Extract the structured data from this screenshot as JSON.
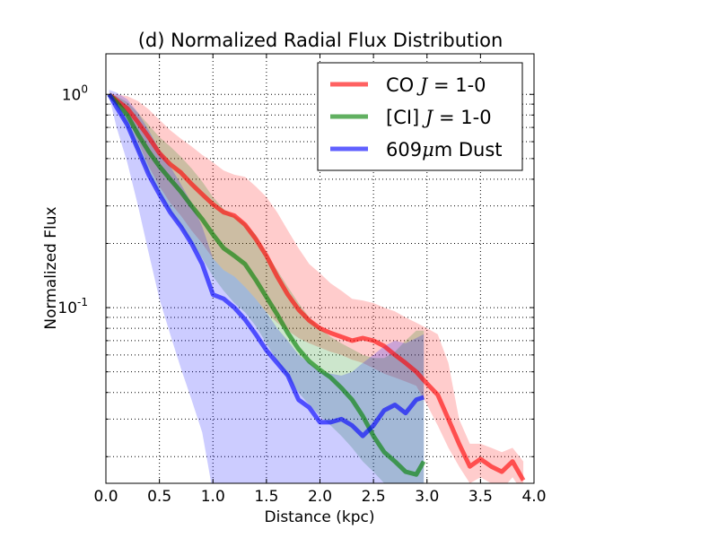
{
  "chart_data": {
    "type": "line",
    "title": "(d) Normalized Radial Flux Distribution",
    "xlabel": "Distance (kpc)",
    "ylabel": "Normalized Flux",
    "xlim": [
      0.0,
      4.0
    ],
    "ylim": [
      0.015,
      1.55
    ],
    "yscale": "log",
    "grid": true,
    "legend_position": "top-right",
    "x_ticks": [
      0.0,
      0.5,
      1.0,
      1.5,
      2.0,
      2.5,
      3.0,
      3.5,
      4.0
    ],
    "x_tick_labels": [
      "0.0",
      "0.5",
      "1.0",
      "1.5",
      "2.0",
      "2.5",
      "3.0",
      "3.5",
      "4.0"
    ],
    "y_ticks": [
      {
        "value": 1.0,
        "base": "10",
        "exp": "0"
      },
      {
        "value": 0.1,
        "base": "10",
        "exp": "-1"
      }
    ],
    "series": [
      {
        "name": "CO J = 1-0",
        "legend_main": "CO ",
        "legend_italic": "J",
        "legend_tail": " = 1-0",
        "color": "#ff0000",
        "x": [
          0.03,
          0.1,
          0.2,
          0.3,
          0.4,
          0.5,
          0.6,
          0.7,
          0.8,
          0.9,
          1.0,
          1.1,
          1.2,
          1.3,
          1.4,
          1.5,
          1.6,
          1.7,
          1.8,
          1.9,
          2.0,
          2.1,
          2.2,
          2.3,
          2.4,
          2.5,
          2.6,
          2.7,
          2.8,
          2.9,
          3.0,
          3.1,
          3.2,
          3.3,
          3.4,
          3.5,
          3.6,
          3.7,
          3.8,
          3.9
        ],
        "y": [
          1.0,
          0.94,
          0.86,
          0.74,
          0.63,
          0.53,
          0.47,
          0.43,
          0.38,
          0.34,
          0.305,
          0.28,
          0.27,
          0.245,
          0.21,
          0.175,
          0.14,
          0.115,
          0.098,
          0.087,
          0.08,
          0.076,
          0.073,
          0.07,
          0.072,
          0.07,
          0.066,
          0.06,
          0.055,
          0.05,
          0.044,
          0.039,
          0.03,
          0.023,
          0.018,
          0.0195,
          0.018,
          0.017,
          0.019,
          0.0155
        ],
        "y_upper": [
          1.0,
          1.0,
          0.98,
          0.93,
          0.85,
          0.76,
          0.68,
          0.62,
          0.57,
          0.52,
          0.48,
          0.44,
          0.42,
          0.41,
          0.37,
          0.33,
          0.28,
          0.23,
          0.19,
          0.16,
          0.145,
          0.13,
          0.12,
          0.11,
          0.108,
          0.105,
          0.1,
          0.096,
          0.09,
          0.085,
          0.08,
          0.075,
          0.055,
          0.03,
          0.023,
          0.023,
          0.022,
          0.021,
          0.022,
          0.019
        ],
        "y_lower": [
          1.0,
          0.9,
          0.78,
          0.6,
          0.46,
          0.37,
          0.31,
          0.27,
          0.23,
          0.2,
          0.17,
          0.15,
          0.14,
          0.125,
          0.11,
          0.095,
          0.085,
          0.078,
          0.072,
          0.068,
          0.065,
          0.062,
          0.06,
          0.057,
          0.055,
          0.052,
          0.049,
          0.047,
          0.045,
          0.043,
          0.035,
          0.028,
          0.022,
          0.018,
          0.015,
          0.016,
          0.015,
          0.014,
          0.016,
          0.0135
        ]
      },
      {
        "name": "[CI] J = 1-0",
        "legend_main": "[CI] ",
        "legend_italic": "J",
        "legend_tail": " = 1-0",
        "color": "#008000",
        "x": [
          0.03,
          0.1,
          0.2,
          0.3,
          0.4,
          0.5,
          0.6,
          0.7,
          0.8,
          0.9,
          1.0,
          1.1,
          1.2,
          1.3,
          1.4,
          1.5,
          1.6,
          1.7,
          1.8,
          1.9,
          2.0,
          2.1,
          2.2,
          2.3,
          2.4,
          2.5,
          2.6,
          2.7,
          2.8,
          2.9,
          2.97
        ],
        "y": [
          1.0,
          0.92,
          0.8,
          0.65,
          0.54,
          0.46,
          0.4,
          0.35,
          0.3,
          0.26,
          0.22,
          0.19,
          0.175,
          0.16,
          0.135,
          0.112,
          0.093,
          0.076,
          0.064,
          0.056,
          0.051,
          0.047,
          0.042,
          0.037,
          0.031,
          0.025,
          0.021,
          0.019,
          0.017,
          0.0165,
          0.019
        ],
        "y_upper": [
          1.0,
          0.98,
          0.92,
          0.82,
          0.72,
          0.63,
          0.57,
          0.51,
          0.45,
          0.39,
          0.33,
          0.29,
          0.27,
          0.25,
          0.22,
          0.18,
          0.15,
          0.125,
          0.105,
          0.09,
          0.08,
          0.073,
          0.068,
          0.064,
          0.06,
          0.058,
          0.058,
          0.062,
          0.07,
          0.078,
          0.078
        ],
        "y_lower": [
          1.0,
          0.86,
          0.7,
          0.53,
          0.42,
          0.34,
          0.28,
          0.24,
          0.2,
          0.17,
          0.14,
          0.12,
          0.105,
          0.095,
          0.082,
          0.068,
          0.056,
          0.047,
          0.04,
          0.035,
          0.031,
          0.028,
          0.025,
          0.022,
          0.019,
          0.017,
          0.015,
          0.014,
          0.0135,
          0.0135,
          0.0135
        ]
      },
      {
        "name": "609μm Dust",
        "legend_main": "609",
        "legend_italic": "μ",
        "legend_tail": "m Dust",
        "color": "#0000ff",
        "x": [
          0.03,
          0.1,
          0.2,
          0.3,
          0.4,
          0.5,
          0.6,
          0.7,
          0.8,
          0.9,
          1.0,
          1.1,
          1.2,
          1.3,
          1.4,
          1.5,
          1.6,
          1.7,
          1.8,
          1.9,
          2.0,
          2.1,
          2.2,
          2.3,
          2.4,
          2.5,
          2.6,
          2.7,
          2.8,
          2.9,
          2.97
        ],
        "y": [
          1.0,
          0.87,
          0.72,
          0.55,
          0.42,
          0.34,
          0.28,
          0.24,
          0.2,
          0.16,
          0.115,
          0.11,
          0.1,
          0.088,
          0.075,
          0.063,
          0.055,
          0.048,
          0.037,
          0.034,
          0.029,
          0.029,
          0.03,
          0.028,
          0.025,
          0.028,
          0.033,
          0.035,
          0.032,
          0.037,
          0.038
        ],
        "y_upper": [
          1.05,
          1.02,
          0.95,
          0.82,
          0.68,
          0.55,
          0.46,
          0.38,
          0.31,
          0.24,
          0.17,
          0.15,
          0.14,
          0.125,
          0.11,
          0.095,
          0.08,
          0.07,
          0.06,
          0.055,
          0.05,
          0.049,
          0.048,
          0.05,
          0.055,
          0.06,
          0.066,
          0.07,
          0.068,
          0.072,
          0.075
        ],
        "y_lower": [
          0.98,
          0.7,
          0.48,
          0.3,
          0.18,
          0.11,
          0.075,
          0.052,
          0.037,
          0.026,
          0.0135,
          0.0135,
          0.0135,
          0.0135,
          0.0135,
          0.0135,
          0.0135,
          0.0135,
          0.0135,
          0.0135,
          0.0135,
          0.0135,
          0.0135,
          0.0135,
          0.0135,
          0.0135,
          0.0135,
          0.0135,
          0.0135,
          0.0135,
          0.0135
        ]
      }
    ]
  }
}
